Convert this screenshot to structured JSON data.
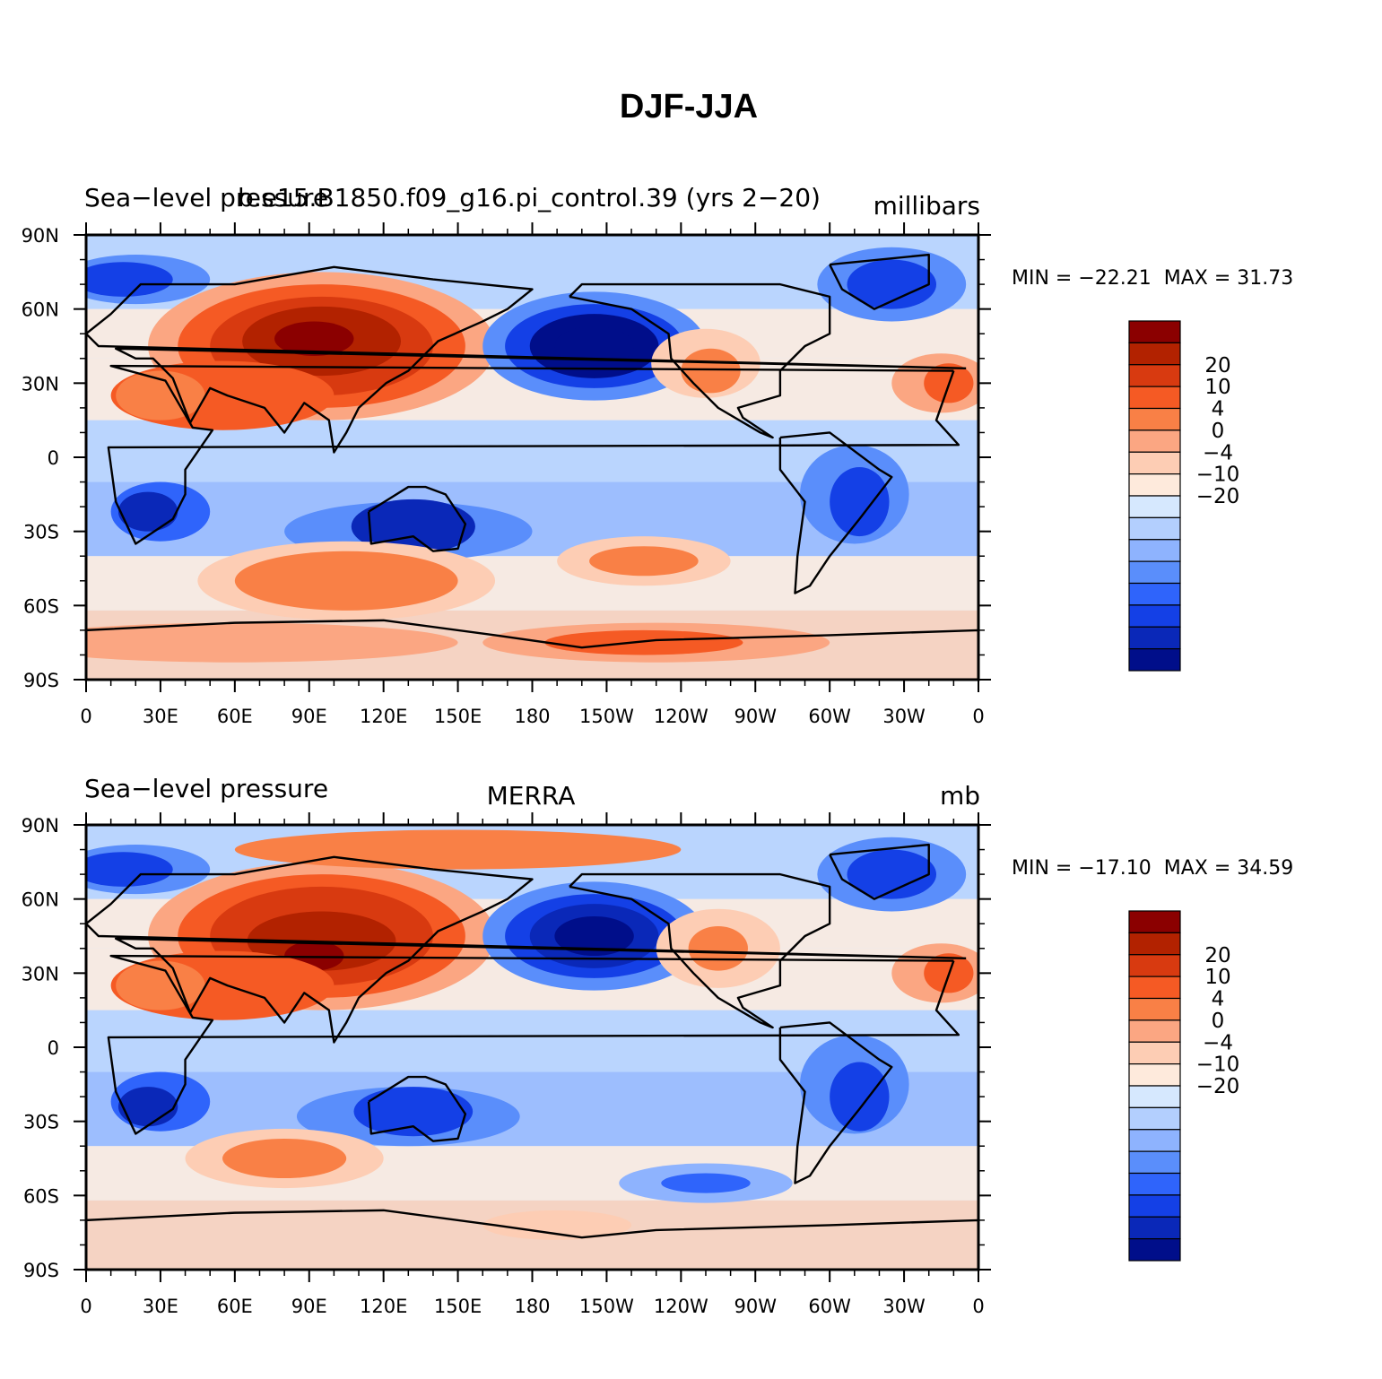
{
  "title": "DJF-JJA",
  "panels": [
    {
      "left_text": "Sea−level pressure",
      "center_text": "b.e15.B1850.f09_g16.pi_control.39 (yrs 2−20)",
      "units": "millibars",
      "min_label": "MIN = −22.21",
      "max_label": "MAX =   31.73",
      "min": -22.21,
      "max": 31.73
    },
    {
      "left_text": "Sea−level pressure",
      "center_text": "MERRA",
      "units": "mb",
      "min_label": "MIN = −17.10",
      "max_label": "MAX =   34.59",
      "min": -17.1,
      "max": 34.59
    }
  ],
  "lat_ticks": [
    "90N",
    "60N",
    "30N",
    "0",
    "30S",
    "60S",
    "90S"
  ],
  "lon_ticks": [
    "0",
    "30E",
    "60E",
    "90E",
    "120E",
    "150E",
    "180",
    "150W",
    "120W",
    "90W",
    "60W",
    "30W",
    "0"
  ],
  "colorbar": {
    "colors": [
      "#8b0000",
      "#b22200",
      "#d83a10",
      "#f55a24",
      "#f98046",
      "#fba682",
      "#fdcdb4",
      "#feeadc",
      "#d6e8fe",
      "#b3cffe",
      "#8eb3fe",
      "#5a8efb",
      "#2f64fb",
      "#1440e6",
      "#0a28b8",
      "#000e8a"
    ],
    "labels": [
      "20",
      "10",
      "4",
      "0",
      "−4",
      "−10",
      "−20"
    ]
  },
  "chart_data": {
    "type": "heatmap",
    "variable": "Sea-level pressure",
    "season_difference": "DJF-JJA",
    "x_range": [
      "0",
      "0"
    ],
    "y_range": [
      "90S",
      "90N"
    ],
    "contour_levels": [
      -25,
      -20,
      -15,
      -10,
      -8,
      -6,
      -4,
      -2,
      0,
      2,
      4,
      6,
      8,
      10,
      15,
      20,
      25
    ],
    "colorbar_tick_labels": [
      20,
      10,
      4,
      0,
      -4,
      -10,
      -20
    ]
  }
}
